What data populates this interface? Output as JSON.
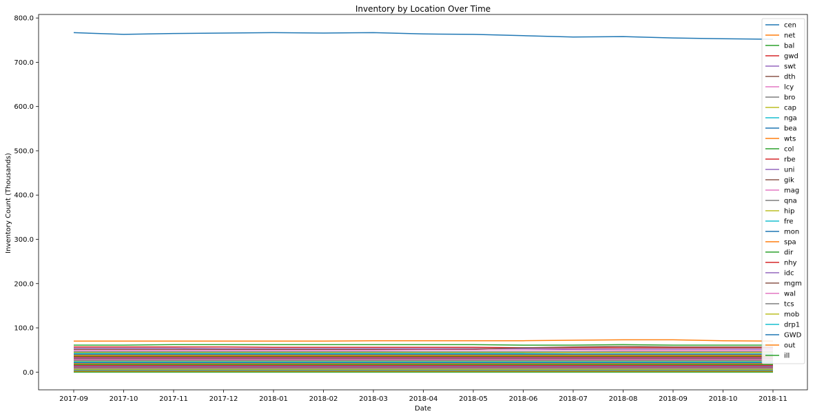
{
  "chart_data": {
    "type": "line",
    "title": "Inventory by Location Over Time",
    "xlabel": "Date",
    "ylabel": "Inventory Count (Thousands)",
    "x": [
      "2017-09",
      "2017-10",
      "2017-11",
      "2017-12",
      "2018-01",
      "2018-02",
      "2018-03",
      "2018-04",
      "2018-05",
      "2018-06",
      "2018-07",
      "2018-08",
      "2018-09",
      "2018-10",
      "2018-11"
    ],
    "ylim": [
      -40,
      808
    ],
    "yticks": [
      0,
      100,
      200,
      300,
      400,
      500,
      600,
      700,
      800
    ],
    "ytick_labels": [
      "0.0",
      "100.0",
      "200.0",
      "300.0",
      "400.0",
      "500.0",
      "600.0",
      "700.0",
      "800.0"
    ],
    "grid": false,
    "legend": "upper-right",
    "series": [
      {
        "name": "cen",
        "color": "#1f77b4",
        "values": [
          767,
          763,
          765,
          766,
          767,
          766,
          767,
          764,
          763,
          760,
          757,
          758,
          755,
          753,
          752
        ]
      },
      {
        "name": "net",
        "color": "#ff7f0e",
        "values": [
          70,
          70,
          70,
          70,
          70,
          70,
          71,
          71,
          71,
          71,
          72,
          73,
          73,
          71,
          70
        ]
      },
      {
        "name": "bal",
        "color": "#2ca02c",
        "values": [
          61,
          61,
          62,
          62,
          62,
          62,
          62,
          62,
          62,
          61,
          61,
          62,
          61,
          61,
          61
        ]
      },
      {
        "name": "gwd",
        "color": "#d62728",
        "values": [
          57,
          57,
          57,
          57,
          56,
          56,
          56,
          56,
          56,
          55,
          55,
          55,
          55,
          55,
          55
        ]
      },
      {
        "name": "swt",
        "color": "#9467bd",
        "values": [
          54,
          54,
          54,
          53,
          53,
          53,
          53,
          53,
          53,
          53,
          52,
          52,
          52,
          52,
          52
        ]
      },
      {
        "name": "dth",
        "color": "#8c564b",
        "values": [
          51,
          51,
          51,
          51,
          51,
          51,
          51,
          51,
          52,
          55,
          57,
          58,
          57,
          57,
          57
        ]
      },
      {
        "name": "lcy",
        "color": "#e377c2",
        "values": [
          49,
          49,
          49,
          49,
          49,
          49,
          49,
          50,
          50,
          50,
          50,
          49,
          49,
          49,
          49
        ]
      },
      {
        "name": "bro",
        "color": "#7f7f7f",
        "values": [
          46,
          46,
          46,
          46,
          46,
          46,
          46,
          46,
          46,
          46,
          46,
          46,
          46,
          46,
          46
        ]
      },
      {
        "name": "cap",
        "color": "#bcbd22",
        "values": [
          44,
          44,
          44,
          44,
          44,
          44,
          44,
          44,
          44,
          44,
          44,
          44,
          44,
          44,
          44
        ]
      },
      {
        "name": "nga",
        "color": "#17becf",
        "values": [
          42,
          42,
          42,
          42,
          42,
          42,
          42,
          42,
          42,
          42,
          41,
          41,
          41,
          41,
          41
        ]
      },
      {
        "name": "bea",
        "color": "#1f77b4",
        "values": [
          40,
          40,
          40,
          40,
          40,
          40,
          40,
          40,
          40,
          40,
          40,
          40,
          40,
          40,
          40
        ]
      },
      {
        "name": "wts",
        "color": "#ff7f0e",
        "values": [
          38,
          38,
          38,
          38,
          38,
          38,
          38,
          38,
          38,
          38,
          38,
          38,
          38,
          38,
          38
        ]
      },
      {
        "name": "col",
        "color": "#2ca02c",
        "values": [
          36,
          36,
          36,
          36,
          36,
          36,
          36,
          36,
          36,
          36,
          36,
          36,
          36,
          36,
          36
        ]
      },
      {
        "name": "rbe",
        "color": "#d62728",
        "values": [
          34,
          34,
          34,
          34,
          34,
          34,
          34,
          34,
          34,
          34,
          34,
          34,
          34,
          34,
          34
        ]
      },
      {
        "name": "uni",
        "color": "#9467bd",
        "values": [
          32,
          32,
          32,
          32,
          32,
          32,
          32,
          32,
          32,
          32,
          32,
          32,
          32,
          32,
          32
        ]
      },
      {
        "name": "gik",
        "color": "#8c564b",
        "values": [
          30,
          30,
          30,
          30,
          30,
          30,
          30,
          30,
          30,
          30,
          30,
          30,
          30,
          30,
          30
        ]
      },
      {
        "name": "mag",
        "color": "#e377c2",
        "values": [
          28,
          28,
          28,
          28,
          28,
          28,
          28,
          28,
          28,
          28,
          28,
          28,
          28,
          28,
          28
        ]
      },
      {
        "name": "qna",
        "color": "#7f7f7f",
        "values": [
          26,
          26,
          26,
          26,
          26,
          26,
          26,
          26,
          26,
          26,
          26,
          26,
          26,
          26,
          26
        ]
      },
      {
        "name": "hip",
        "color": "#bcbd22",
        "values": [
          24,
          24,
          24,
          24,
          24,
          24,
          24,
          24,
          24,
          24,
          24,
          24,
          24,
          24,
          24
        ]
      },
      {
        "name": "fre",
        "color": "#17becf",
        "values": [
          23,
          23,
          23,
          23,
          23,
          23,
          23,
          23,
          23,
          23,
          23,
          23,
          23,
          23,
          23
        ]
      },
      {
        "name": "mon",
        "color": "#1f77b4",
        "values": [
          21,
          21,
          21,
          21,
          21,
          21,
          21,
          21,
          21,
          21,
          21,
          21,
          21,
          21,
          21
        ]
      },
      {
        "name": "spa",
        "color": "#ff7f0e",
        "values": [
          19,
          19,
          19,
          19,
          19,
          19,
          19,
          19,
          19,
          19,
          19,
          19,
          19,
          19,
          19
        ]
      },
      {
        "name": "dir",
        "color": "#2ca02c",
        "values": [
          17,
          17,
          17,
          17,
          17,
          17,
          17,
          17,
          17,
          17,
          17,
          17,
          17,
          17,
          17
        ]
      },
      {
        "name": "nhy",
        "color": "#d62728",
        "values": [
          15,
          15,
          15,
          15,
          15,
          15,
          15,
          15,
          15,
          15,
          15,
          15,
          15,
          15,
          15
        ]
      },
      {
        "name": "idc",
        "color": "#9467bd",
        "values": [
          13,
          13,
          13,
          13,
          13,
          13,
          13,
          13,
          13,
          13,
          13,
          13,
          13,
          13,
          13
        ]
      },
      {
        "name": "mgm",
        "color": "#8c564b",
        "values": [
          11,
          11,
          11,
          11,
          11,
          11,
          11,
          11,
          11,
          11,
          11,
          11,
          11,
          11,
          11
        ]
      },
      {
        "name": "wal",
        "color": "#e377c2",
        "values": [
          9,
          9,
          9,
          9,
          9,
          9,
          9,
          9,
          9,
          9,
          9,
          9,
          9,
          9,
          9
        ]
      },
      {
        "name": "tcs",
        "color": "#7f7f7f",
        "values": [
          8,
          8,
          8,
          8,
          8,
          8,
          8,
          8,
          8,
          8,
          8,
          8,
          8,
          8,
          8
        ]
      },
      {
        "name": "mob",
        "color": "#bcbd22",
        "values": [
          6,
          6,
          6,
          6,
          6,
          6,
          6,
          6,
          6,
          6,
          6,
          6,
          6,
          6,
          6
        ]
      },
      {
        "name": "drp1",
        "color": "#17becf",
        "values": [
          4,
          4,
          4,
          4,
          4,
          4,
          4,
          4,
          4,
          4,
          4,
          4,
          4,
          4,
          4
        ]
      },
      {
        "name": "GWD",
        "color": "#1f77b4",
        "values": [
          3,
          3,
          3,
          3,
          3,
          3,
          3,
          3,
          3,
          3,
          3,
          3,
          3,
          3,
          3
        ]
      },
      {
        "name": "out",
        "color": "#ff7f0e",
        "values": [
          2,
          2,
          2,
          2,
          2,
          2,
          2,
          2,
          2,
          2,
          2,
          2,
          2,
          2,
          2
        ]
      },
      {
        "name": "ill",
        "color": "#2ca02c",
        "values": [
          0,
          0,
          0,
          0,
          0,
          0,
          0,
          0,
          0,
          0,
          0,
          0,
          0,
          0,
          0
        ]
      }
    ]
  }
}
